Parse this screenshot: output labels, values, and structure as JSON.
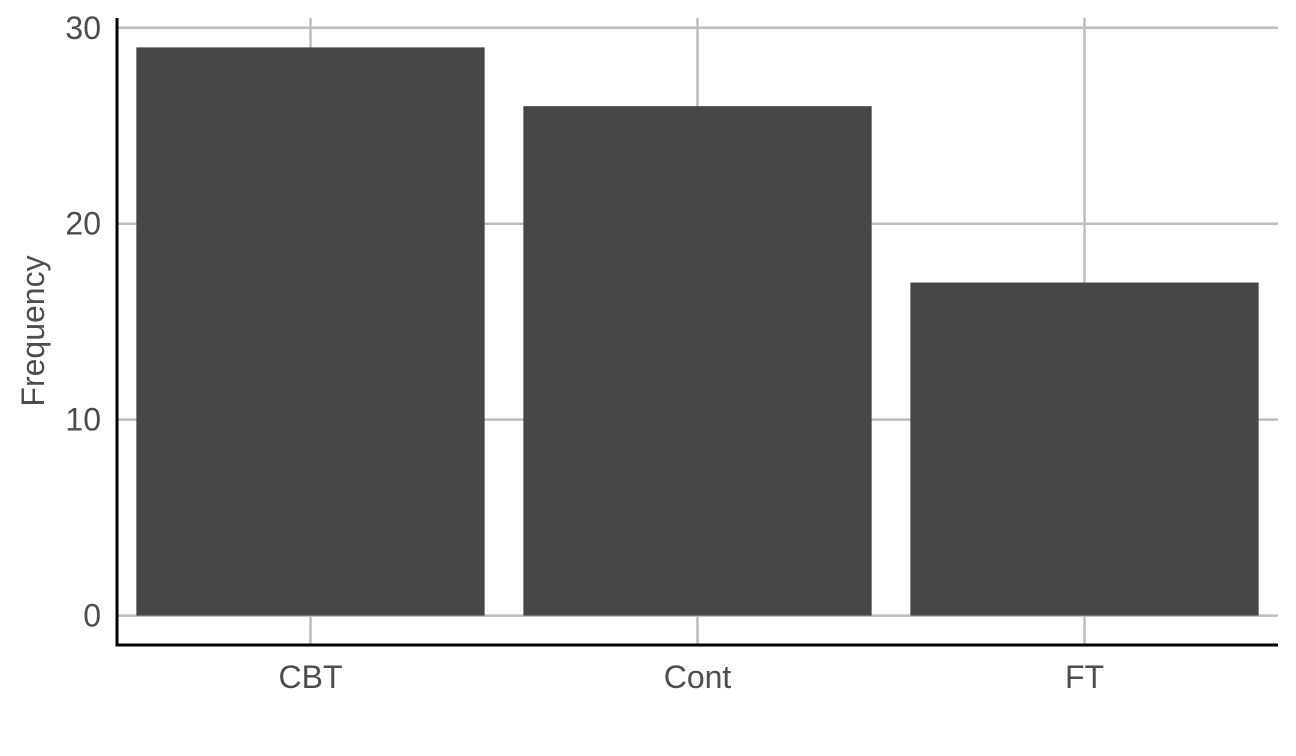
{
  "chart_data": {
    "type": "bar",
    "categories": [
      "CBT",
      "Cont",
      "FT"
    ],
    "values": [
      29,
      26,
      17
    ],
    "title": "",
    "xlabel": "",
    "ylabel": "Frequency",
    "ylim": [
      -1.5,
      30.5
    ],
    "yticks": [
      0,
      10,
      20,
      30
    ],
    "ytick_labels": [
      "0",
      "10",
      "20",
      "30"
    ],
    "grid": true,
    "legend": "none",
    "colors": {
      "bar": "#474747",
      "grid": "#bebebe",
      "axis": "#000000",
      "text": "#4d4d4d"
    }
  }
}
